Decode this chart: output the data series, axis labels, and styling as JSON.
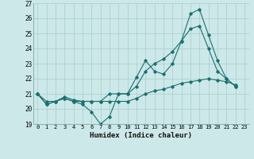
{
  "title": "",
  "xlabel": "Humidex (Indice chaleur)",
  "bg_color": "#cce8e8",
  "grid_color": "#aacccc",
  "line_color": "#1a7070",
  "xlim": [
    -0.5,
    23.5
  ],
  "ylim": [
    19,
    27
  ],
  "yticks": [
    19,
    20,
    21,
    22,
    23,
    24,
    25,
    26,
    27
  ],
  "xticks": [
    0,
    1,
    2,
    3,
    4,
    5,
    6,
    7,
    8,
    9,
    10,
    11,
    12,
    13,
    14,
    15,
    16,
    17,
    18,
    19,
    20,
    21,
    22,
    23
  ],
  "series": [
    [
      21.0,
      20.3,
      20.5,
      20.7,
      20.5,
      20.3,
      19.8,
      19.0,
      19.5,
      21.0,
      21.0,
      22.1,
      23.2,
      22.5,
      22.3,
      23.0,
      24.5,
      26.3,
      26.6,
      24.9,
      23.2,
      22.0,
      21.5
    ],
    [
      21.0,
      20.3,
      20.5,
      20.7,
      20.5,
      20.5,
      20.5,
      20.5,
      21.0,
      21.0,
      21.0,
      21.5,
      22.5,
      23.0,
      23.3,
      23.8,
      24.5,
      25.3,
      25.5,
      24.0,
      22.5,
      22.0,
      21.5
    ],
    [
      21.0,
      20.5,
      20.5,
      20.8,
      20.6,
      20.5,
      20.5,
      20.5,
      20.5,
      20.5,
      20.5,
      20.7,
      21.0,
      21.2,
      21.3,
      21.5,
      21.7,
      21.8,
      21.9,
      22.0,
      21.9,
      21.8,
      21.6
    ]
  ]
}
